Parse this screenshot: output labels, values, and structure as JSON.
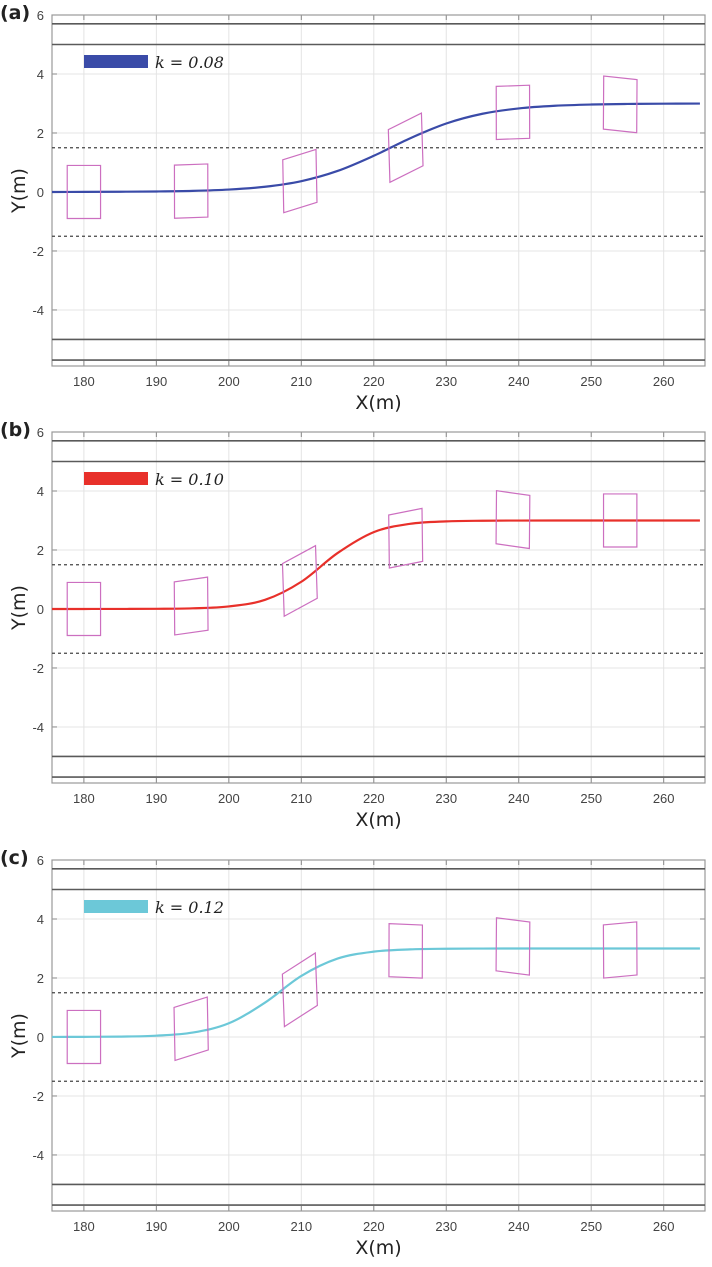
{
  "chart_data": [
    {
      "type": "line",
      "panel_label": "(a)",
      "xlabel": "X(m)",
      "ylabel": "Y(m)",
      "xlim": [
        175.6,
        265.7
      ],
      "ylim": [
        -5.9,
        6.0
      ],
      "xticks": [
        180,
        190,
        200,
        210,
        220,
        230,
        240,
        250,
        260
      ],
      "yticks": [
        -4,
        -2,
        0,
        2,
        4,
        6
      ],
      "grid": true,
      "legend_placement": "top-left",
      "road_boundaries_solid": [
        5.7,
        5.0,
        -5.0,
        -5.7
      ],
      "lane_lines_dashed": [
        1.5,
        -1.5
      ],
      "series": [
        {
          "name": "k = 0.08",
          "color": "#3a4ba8",
          "x": [
            175,
            180,
            185,
            190,
            195,
            200,
            205,
            210,
            215,
            220,
            225,
            230,
            235,
            240,
            245,
            250,
            255,
            260,
            265
          ],
          "y": [
            0.0,
            0.003,
            0.008,
            0.017,
            0.037,
            0.082,
            0.177,
            0.367,
            0.712,
            1.227,
            1.819,
            2.322,
            2.652,
            2.833,
            2.923,
            2.965,
            2.984,
            2.993,
            2.997
          ]
        }
      ],
      "vehicle_color": "#cc6fc0",
      "vehicle_size_m": {
        "length": 4.6,
        "width": 1.8
      },
      "vehicles": [
        {
          "x": 180.0,
          "y": 0.0,
          "heading_deg": 0.0
        },
        {
          "x": 194.8,
          "y": 0.03,
          "heading_deg": 0.5
        },
        {
          "x": 209.8,
          "y": 0.37,
          "heading_deg": 4.4
        },
        {
          "x": 224.4,
          "y": 1.5,
          "heading_deg": 7.0
        },
        {
          "x": 239.2,
          "y": 2.7,
          "heading_deg": 0.5
        },
        {
          "x": 254.0,
          "y": 2.97,
          "heading_deg": -1.5
        }
      ]
    },
    {
      "type": "line",
      "panel_label": "(b)",
      "xlabel": "X(m)",
      "ylabel": "Y(m)",
      "xlim": [
        175.6,
        265.7
      ],
      "ylim": [
        -5.9,
        6.0
      ],
      "xticks": [
        180,
        190,
        200,
        210,
        220,
        230,
        240,
        250,
        260
      ],
      "yticks": [
        -4,
        -2,
        0,
        2,
        4,
        6
      ],
      "grid": true,
      "legend_placement": "top-left",
      "road_boundaries_solid": [
        5.7,
        5.0,
        -5.0,
        -5.7
      ],
      "lane_lines_dashed": [
        1.5,
        -1.5
      ],
      "series": [
        {
          "name": "k = 0.10",
          "color": "#e8302a",
          "x": [
            175,
            180,
            185,
            190,
            195,
            200,
            205,
            210,
            215,
            220,
            225,
            230,
            235,
            240,
            245,
            250,
            255,
            260,
            265
          ],
          "y": [
            0.0,
            0.0004,
            0.0016,
            0.006,
            0.023,
            0.087,
            0.31,
            0.923,
            1.895,
            2.606,
            2.887,
            2.97,
            2.992,
            2.998,
            3.0,
            3.0,
            3.0,
            3.0,
            3.0
          ]
        }
      ],
      "vehicle_color": "#cc6fc0",
      "vehicle_size_m": {
        "length": 4.6,
        "width": 1.8
      },
      "vehicles": [
        {
          "x": 180.0,
          "y": 0.0,
          "heading_deg": 0.0
        },
        {
          "x": 194.8,
          "y": 0.1,
          "heading_deg": 2.0
        },
        {
          "x": 209.8,
          "y": 0.95,
          "heading_deg": 7.6
        },
        {
          "x": 224.4,
          "y": 2.4,
          "heading_deg": 2.8
        },
        {
          "x": 239.2,
          "y": 3.03,
          "heading_deg": -2.0
        },
        {
          "x": 254.0,
          "y": 3.0,
          "heading_deg": 0.0
        }
      ]
    },
    {
      "type": "line",
      "panel_label": "(c)",
      "xlabel": "X(m)",
      "ylabel": "Y(m)",
      "xlim": [
        175.6,
        265.7
      ],
      "ylim": [
        -5.9,
        6.0
      ],
      "xticks": [
        180,
        190,
        200,
        210,
        220,
        230,
        240,
        250,
        260
      ],
      "yticks": [
        -4,
        -2,
        0,
        2,
        4,
        6
      ],
      "grid": true,
      "legend_placement": "top-left",
      "road_boundaries_solid": [
        5.7,
        5.0,
        -5.0,
        -5.7
      ],
      "lane_lines_dashed": [
        1.5,
        -1.5
      ],
      "series": [
        {
          "name": "k = 0.12",
          "color": "#6cc8d8",
          "x": [
            175,
            180,
            185,
            190,
            195,
            200,
            205,
            210,
            215,
            220,
            225,
            230,
            235,
            240,
            245,
            250,
            255,
            260,
            265
          ],
          "y": [
            0.001,
            0.004,
            0.013,
            0.044,
            0.149,
            0.464,
            1.168,
            2.07,
            2.658,
            2.893,
            2.969,
            2.991,
            2.998,
            3.0,
            3.0,
            3.0,
            3.0,
            3.0,
            3.0
          ]
        }
      ],
      "vehicle_color": "#cc6fc0",
      "vehicle_size_m": {
        "length": 4.6,
        "width": 1.8
      },
      "vehicles": [
        {
          "x": 180.0,
          "y": 0.0,
          "heading_deg": 0.0
        },
        {
          "x": 194.8,
          "y": 0.28,
          "heading_deg": 4.4
        },
        {
          "x": 209.8,
          "y": 1.6,
          "heading_deg": 9.0
        },
        {
          "x": 224.4,
          "y": 2.92,
          "heading_deg": -0.6
        },
        {
          "x": 239.2,
          "y": 3.07,
          "heading_deg": -1.8
        },
        {
          "x": 254.0,
          "y": 2.95,
          "heading_deg": 1.3
        }
      ]
    }
  ]
}
